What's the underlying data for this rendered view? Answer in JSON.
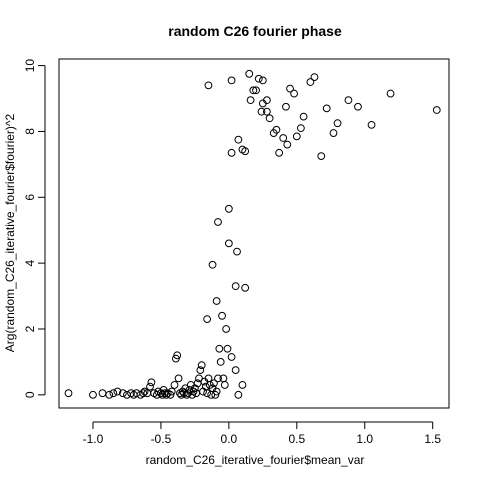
{
  "chart_data": {
    "type": "scatter",
    "title": "random C26 fourier phase",
    "xlabel": "random_C26_iterative_fourier$mean_var",
    "ylabel": "Arg(random_C26_iterative_fourier$fourier)^2",
    "xlim": [
      -1.25,
      1.62
    ],
    "ylim": [
      -0.4,
      10.2
    ],
    "x_ticks": [
      -1.0,
      -0.5,
      0.0,
      0.5,
      1.0,
      1.5
    ],
    "x_tick_labels": [
      "-1.0",
      "-0.5",
      "0.0",
      "0.5",
      "1.0",
      "1.5"
    ],
    "y_ticks": [
      0,
      2,
      4,
      6,
      8,
      10
    ],
    "y_tick_labels": [
      "0",
      "2",
      "4",
      "6",
      "8",
      "10"
    ],
    "grid": false,
    "marker": "open-circle",
    "points": [
      [
        -1.18,
        0.05
      ],
      [
        -1.0,
        0.0
      ],
      [
        -0.93,
        0.05
      ],
      [
        -0.88,
        0.0
      ],
      [
        -0.85,
        0.05
      ],
      [
        -0.82,
        0.1
      ],
      [
        -0.78,
        0.05
      ],
      [
        -0.75,
        0.0
      ],
      [
        -0.72,
        0.05
      ],
      [
        -0.7,
        0.0
      ],
      [
        -0.68,
        0.05
      ],
      [
        -0.65,
        0.0
      ],
      [
        -0.63,
        0.05
      ],
      [
        -0.62,
        0.1
      ],
      [
        -0.6,
        0.05
      ],
      [
        -0.58,
        0.25
      ],
      [
        -0.57,
        0.38
      ],
      [
        -0.55,
        0.05
      ],
      [
        -0.53,
        0.0
      ],
      [
        -0.52,
        0.1
      ],
      [
        -0.5,
        0.05
      ],
      [
        -0.49,
        0.0
      ],
      [
        -0.48,
        0.15
      ],
      [
        -0.47,
        0.05
      ],
      [
        -0.46,
        0.0
      ],
      [
        -0.45,
        0.05
      ],
      [
        -0.43,
        0.0
      ],
      [
        -0.42,
        0.1
      ],
      [
        -0.4,
        0.3
      ],
      [
        -0.39,
        1.1
      ],
      [
        -0.38,
        1.2
      ],
      [
        -0.37,
        0.5
      ],
      [
        -0.36,
        0.05
      ],
      [
        -0.35,
        0.0
      ],
      [
        -0.34,
        0.1
      ],
      [
        -0.33,
        0.05
      ],
      [
        -0.32,
        0.2
      ],
      [
        -0.31,
        0.0
      ],
      [
        -0.3,
        0.05
      ],
      [
        -0.29,
        0.15
      ],
      [
        -0.28,
        0.3
      ],
      [
        -0.27,
        0.0
      ],
      [
        -0.26,
        0.1
      ],
      [
        -0.25,
        0.2
      ],
      [
        -0.24,
        0.05
      ],
      [
        -0.23,
        0.35
      ],
      [
        -0.22,
        0.5
      ],
      [
        -0.21,
        0.75
      ],
      [
        -0.2,
        0.9
      ],
      [
        -0.19,
        0.1
      ],
      [
        -0.18,
        0.4
      ],
      [
        -0.17,
        0.25
      ],
      [
        -0.16,
        0.05
      ],
      [
        -0.15,
        0.5
      ],
      [
        -0.14,
        0.3
      ],
      [
        -0.13,
        0.0
      ],
      [
        -0.12,
        0.2
      ],
      [
        -0.11,
        0.35
      ],
      [
        -0.1,
        0.0
      ],
      [
        -0.09,
        0.1
      ],
      [
        -0.08,
        0.5
      ],
      [
        -0.07,
        1.4
      ],
      [
        -0.06,
        1.0
      ],
      [
        -0.05,
        2.4
      ],
      [
        -0.04,
        0.5
      ],
      [
        -0.03,
        0.3
      ],
      [
        -0.02,
        2.0
      ],
      [
        -0.01,
        1.4
      ],
      [
        0.02,
        1.15
      ],
      [
        0.05,
        0.75
      ],
      [
        0.07,
        0.0
      ],
      [
        0.1,
        0.3
      ],
      [
        -0.16,
        2.3
      ],
      [
        -0.09,
        2.85
      ],
      [
        -0.12,
        3.95
      ],
      [
        0.05,
        3.3
      ],
      [
        0.12,
        3.25
      ],
      [
        -0.08,
        5.25
      ],
      [
        0.0,
        4.6
      ],
      [
        0.06,
        4.35
      ],
      [
        0.0,
        5.65
      ],
      [
        0.02,
        7.35
      ],
      [
        0.07,
        7.75
      ],
      [
        0.1,
        7.45
      ],
      [
        0.12,
        7.4
      ],
      [
        -0.15,
        9.4
      ],
      [
        0.02,
        9.55
      ],
      [
        0.15,
        9.75
      ],
      [
        0.18,
        9.25
      ],
      [
        0.2,
        9.25
      ],
      [
        0.22,
        9.6
      ],
      [
        0.25,
        9.55
      ],
      [
        0.16,
        8.95
      ],
      [
        0.25,
        8.85
      ],
      [
        0.28,
        8.95
      ],
      [
        0.24,
        8.6
      ],
      [
        0.28,
        8.6
      ],
      [
        0.3,
        8.4
      ],
      [
        0.33,
        7.95
      ],
      [
        0.35,
        8.05
      ],
      [
        0.37,
        7.35
      ],
      [
        0.4,
        7.8
      ],
      [
        0.42,
        8.75
      ],
      [
        0.43,
        7.6
      ],
      [
        0.45,
        9.3
      ],
      [
        0.48,
        9.15
      ],
      [
        0.5,
        7.85
      ],
      [
        0.53,
        8.1
      ],
      [
        0.55,
        8.45
      ],
      [
        0.6,
        9.5
      ],
      [
        0.63,
        9.65
      ],
      [
        0.68,
        7.25
      ],
      [
        0.72,
        8.7
      ],
      [
        0.77,
        7.95
      ],
      [
        0.8,
        8.25
      ],
      [
        0.88,
        8.95
      ],
      [
        0.95,
        8.75
      ],
      [
        1.05,
        8.2
      ],
      [
        1.19,
        9.15
      ],
      [
        1.53,
        8.65
      ]
    ]
  }
}
